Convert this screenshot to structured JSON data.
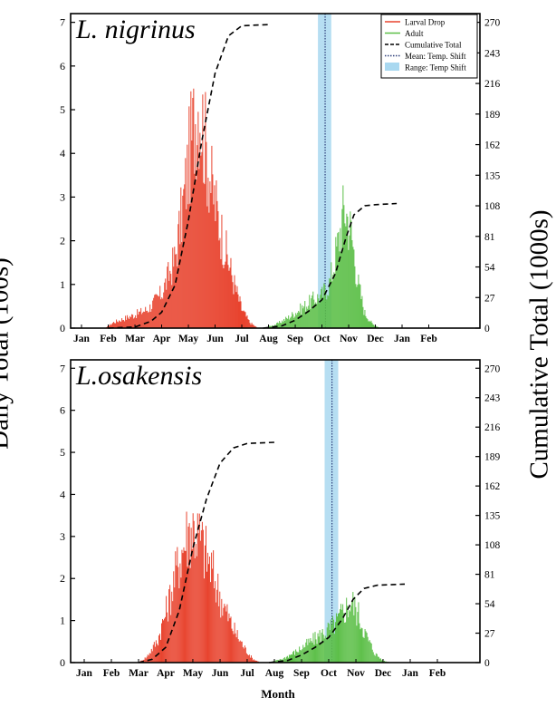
{
  "figure": {
    "left_axis_label": "Daily Total (100s)",
    "right_axis_label": "Cumulative Total (1000s)",
    "x_axis_label": "Month"
  },
  "legend": {
    "items": [
      {
        "label": "Larval Drop",
        "color": "#e8432e",
        "style": "line"
      },
      {
        "label": "Adult",
        "color": "#5cbf48",
        "style": "line"
      },
      {
        "label": "Cumulative Total",
        "color": "#000000",
        "style": "dashed"
      },
      {
        "label": "Mean: Temp. Shift",
        "color": "#2c3e7a",
        "style": "dotted"
      },
      {
        "label": "Range: Temp Shift",
        "color": "#a9d8f0",
        "style": "patch"
      }
    ]
  },
  "chart_data": [
    {
      "type": "bar",
      "title": "L. nigrinus",
      "months": [
        "Jan",
        "Feb",
        "Mar",
        "Apr",
        "May",
        "Jun",
        "Jul",
        "Aug",
        "Sep",
        "Oct",
        "Nov",
        "Dec",
        "Jan",
        "Feb"
      ],
      "y_left_ticks": [
        0,
        1,
        2,
        3,
        4,
        5,
        6,
        7
      ],
      "y_left_lim": [
        0,
        7.2
      ],
      "y_right_ticks": [
        0,
        27,
        54,
        81,
        108,
        135,
        162,
        189,
        216,
        243,
        270
      ],
      "y_right_lim": [
        0,
        277.7
      ],
      "temp_shift_range": [
        8.85,
        9.35
      ],
      "temp_shift_mean": 9.12,
      "series": [
        {
          "name": "Larval Drop",
          "color": "#e8432e",
          "points": [
            [
              0.9,
              0
            ],
            [
              1.2,
              0.15
            ],
            [
              1.6,
              0.25
            ],
            [
              2.0,
              0.35
            ],
            [
              2.5,
              0.5
            ],
            [
              3.0,
              0.9
            ],
            [
              3.5,
              1.8
            ],
            [
              3.8,
              3.2
            ],
            [
              4.0,
              4.3
            ],
            [
              4.2,
              5.3
            ],
            [
              4.4,
              6.0
            ],
            [
              4.6,
              5.0
            ],
            [
              4.9,
              3.6
            ],
            [
              5.3,
              2.3
            ],
            [
              5.7,
              1.2
            ],
            [
              6.0,
              0.5
            ],
            [
              6.3,
              0.15
            ],
            [
              6.6,
              0
            ]
          ]
        },
        {
          "name": "Adult",
          "color": "#5cbf48",
          "points": [
            [
              6.8,
              0
            ],
            [
              7.3,
              0.1
            ],
            [
              7.8,
              0.3
            ],
            [
              8.3,
              0.55
            ],
            [
              8.7,
              0.75
            ],
            [
              9.0,
              0.85
            ],
            [
              9.3,
              1.2
            ],
            [
              9.6,
              2.2
            ],
            [
              9.85,
              3.2
            ],
            [
              10.1,
              2.5
            ],
            [
              10.35,
              1.2
            ],
            [
              10.6,
              0.4
            ],
            [
              10.9,
              0.1
            ],
            [
              11.2,
              0
            ]
          ]
        },
        {
          "name": "Cumulative Total",
          "color": "#000000",
          "axis": "right",
          "points": [
            [
              1.0,
              0
            ],
            [
              2.0,
              1
            ],
            [
              2.6,
              6
            ],
            [
              3.0,
              14
            ],
            [
              3.5,
              38
            ],
            [
              4.0,
              95
            ],
            [
              4.5,
              165
            ],
            [
              5.0,
              225
            ],
            [
              5.5,
              258
            ],
            [
              6.0,
              267
            ],
            [
              7.0,
              268
            ]
          ]
        },
        {
          "name": "Cumulative Total (adult)",
          "color": "#000000",
          "axis": "right",
          "points": [
            [
              6.8,
              0
            ],
            [
              7.5,
              2
            ],
            [
              8.0,
              7
            ],
            [
              8.5,
              15
            ],
            [
              9.0,
              25
            ],
            [
              9.5,
              48
            ],
            [
              9.9,
              80
            ],
            [
              10.2,
              100
            ],
            [
              10.6,
              108
            ],
            [
              11.0,
              109
            ],
            [
              11.8,
              110
            ]
          ]
        }
      ]
    },
    {
      "type": "bar",
      "title": "L.osakensis",
      "months": [
        "Jan",
        "Feb",
        "Mar",
        "Apr",
        "May",
        "Jun",
        "Jul",
        "Aug",
        "Sep",
        "Oct",
        "Nov",
        "Dec",
        "Jan",
        "Feb"
      ],
      "y_left_ticks": [
        0,
        1,
        2,
        3,
        4,
        5,
        6,
        7
      ],
      "y_left_lim": [
        0,
        7.2
      ],
      "y_right_ticks": [
        0,
        27,
        54,
        81,
        108,
        135,
        162,
        189,
        216,
        243,
        270
      ],
      "y_right_lim": [
        0,
        277.7
      ],
      "temp_shift_range": [
        8.85,
        9.35
      ],
      "temp_shift_mean": 9.12,
      "series": [
        {
          "name": "Larval Drop",
          "color": "#e8432e",
          "points": [
            [
              2.0,
              0
            ],
            [
              2.3,
              0.15
            ],
            [
              2.7,
              0.6
            ],
            [
              3.1,
              1.6
            ],
            [
              3.5,
              2.8
            ],
            [
              3.8,
              3.5
            ],
            [
              4.0,
              3.7
            ],
            [
              4.3,
              3.3
            ],
            [
              4.7,
              2.5
            ],
            [
              5.1,
              1.6
            ],
            [
              5.5,
              0.9
            ],
            [
              5.9,
              0.4
            ],
            [
              6.2,
              0.1
            ],
            [
              6.5,
              0
            ]
          ]
        },
        {
          "name": "Adult",
          "color": "#5cbf48",
          "points": [
            [
              6.8,
              0
            ],
            [
              7.3,
              0.1
            ],
            [
              7.8,
              0.3
            ],
            [
              8.3,
              0.55
            ],
            [
              8.7,
              0.75
            ],
            [
              9.0,
              0.9
            ],
            [
              9.3,
              1.1
            ],
            [
              9.6,
              1.45
            ],
            [
              9.85,
              1.65
            ],
            [
              10.1,
              1.3
            ],
            [
              10.4,
              0.7
            ],
            [
              10.7,
              0.25
            ],
            [
              11.0,
              0.05
            ],
            [
              11.3,
              0
            ]
          ]
        },
        {
          "name": "Cumulative Total",
          "color": "#000000",
          "axis": "right",
          "points": [
            [
              2.0,
              0
            ],
            [
              2.5,
              3
            ],
            [
              3.0,
              14
            ],
            [
              3.5,
              48
            ],
            [
              4.0,
              105
            ],
            [
              4.5,
              150
            ],
            [
              5.0,
              183
            ],
            [
              5.5,
              197
            ],
            [
              6.0,
              201
            ],
            [
              7.0,
              202
            ]
          ]
        },
        {
          "name": "Cumulative Total (adult)",
          "color": "#000000",
          "axis": "right",
          "points": [
            [
              6.8,
              0
            ],
            [
              7.5,
              2
            ],
            [
              8.0,
              7
            ],
            [
              8.5,
              14
            ],
            [
              9.0,
              23
            ],
            [
              9.5,
              40
            ],
            [
              9.9,
              58
            ],
            [
              10.3,
              68
            ],
            [
              10.8,
              71
            ],
            [
              11.8,
              72
            ]
          ]
        }
      ]
    }
  ]
}
